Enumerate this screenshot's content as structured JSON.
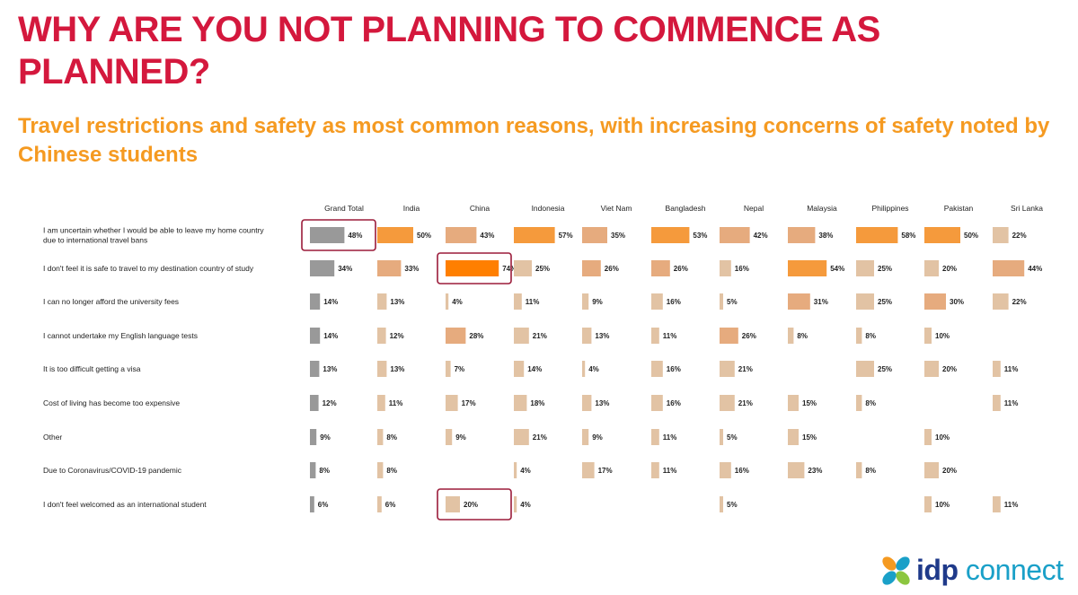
{
  "title": "WHY ARE YOU NOT PLANNING TO COMMENCE AS PLANNED?",
  "subtitle": "Travel restrictions and safety as most common reasons, with increasing concerns of safety noted by Chinese students",
  "logo": {
    "part1": "idp",
    "part2": "connect",
    "icon": "idp-petal-icon"
  },
  "colors": {
    "title": "#d4183d",
    "subtitle": "#f59a21",
    "grand_total": "#999999",
    "light": "#e2c3a4",
    "medium": "#e6ab7e",
    "strong": "#f59a3c",
    "strongest": "#ff7f00",
    "highlight_box": "#9b1c3a"
  },
  "chart_data": {
    "type": "table",
    "columns": [
      "Grand Total",
      "India",
      "China",
      "Indonesia",
      "Viet Nam",
      "Bangladesh",
      "Nepal",
      "Malaysia",
      "Philippines",
      "Pakistan",
      "Sri Lanka"
    ],
    "rows": [
      "I am uncertain whether I would be able to leave my home country due to international travel bans",
      "I don't feel it is safe to travel to my destination country of study",
      "I can no longer afford the university fees",
      "I cannot undertake my English language tests",
      "It is too difficult getting a visa",
      "Cost of living has become too expensive",
      "Other",
      "Due to Coronavirus/COVID-19 pandemic",
      "I don't feel welcomed as an international student"
    ],
    "row_label_lines": [
      [
        "I am uncertain whether I would be able to leave my home country",
        "due to international travel bans"
      ],
      [
        "I don't feel it is safe to travel to my destination country of study"
      ],
      [
        "I can no longer afford the university fees"
      ],
      [
        "I cannot undertake my English language tests"
      ],
      [
        "It is too difficult getting a visa"
      ],
      [
        "Cost of living has become too expensive"
      ],
      [
        "Other"
      ],
      [
        "Due to Coronavirus/COVID-19 pandemic"
      ],
      [
        "I don't feel welcomed as an international student"
      ]
    ],
    "values": [
      [
        48,
        50,
        43,
        57,
        35,
        53,
        42,
        38,
        58,
        50,
        22
      ],
      [
        34,
        33,
        74,
        25,
        26,
        26,
        16,
        54,
        25,
        20,
        44
      ],
      [
        14,
        13,
        4,
        11,
        9,
        16,
        5,
        31,
        25,
        30,
        22
      ],
      [
        14,
        12,
        28,
        21,
        13,
        11,
        26,
        8,
        8,
        10,
        null
      ],
      [
        13,
        13,
        7,
        14,
        4,
        16,
        21,
        null,
        25,
        20,
        11
      ],
      [
        12,
        11,
        17,
        18,
        13,
        16,
        21,
        15,
        8,
        null,
        11
      ],
      [
        9,
        8,
        9,
        21,
        9,
        11,
        5,
        15,
        null,
        10,
        null
      ],
      [
        8,
        8,
        null,
        4,
        17,
        11,
        16,
        23,
        8,
        20,
        null
      ],
      [
        6,
        6,
        20,
        4,
        null,
        null,
        5,
        null,
        null,
        10,
        11
      ]
    ],
    "unit": "%",
    "highlights": [
      {
        "row": 0,
        "col": 0
      },
      {
        "row": 1,
        "col": 2
      },
      {
        "row": 8,
        "col": 2
      }
    ]
  }
}
